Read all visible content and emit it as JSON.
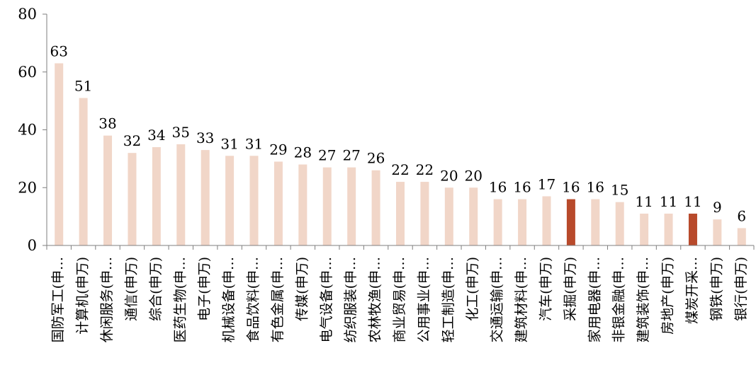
{
  "chart_data": {
    "type": "bar",
    "title": "",
    "xlabel": "",
    "ylabel": "",
    "ylim": [
      0,
      80
    ],
    "yticks": [
      0,
      20,
      40,
      60,
      80
    ],
    "grid": false,
    "legend": "none",
    "colors": {
      "default_bar": "#f1d6c8",
      "highlight_bar": "#b84a2b",
      "axis": "#7f7f7f",
      "text": "#000000"
    },
    "categories": [
      "国防军工(申…",
      "计算机(申万)",
      "休闲服务(申…",
      "通信(申万)",
      "综合(申万)",
      "医药生物(申…",
      "电子(申万)",
      "机械设备(申…",
      "食品饮料(申…",
      "有色金属(申…",
      "传媒(申万)",
      "电气设备(申…",
      "纺织服装(申…",
      "农林牧渔(申…",
      "商业贸易(申…",
      "公用事业(申…",
      "轻工制造(申…",
      "化工(申万)",
      "交通运输(申…",
      "建筑材料(申…",
      "汽车(申万)",
      "采掘(申万)",
      "家用电器(申…",
      "非银金融(申…",
      "建筑装饰(申…",
      "房地产(申万)",
      "煤炭开采…",
      "钢铁(申万)",
      "银行(申万)"
    ],
    "values": [
      63,
      51,
      38,
      32,
      34,
      35,
      33,
      31,
      31,
      29,
      28,
      27,
      27,
      26,
      22,
      22,
      20,
      20,
      16,
      16,
      17,
      16,
      16,
      15,
      11,
      11,
      11,
      9,
      6
    ],
    "highlighted": [
      21,
      26
    ]
  }
}
